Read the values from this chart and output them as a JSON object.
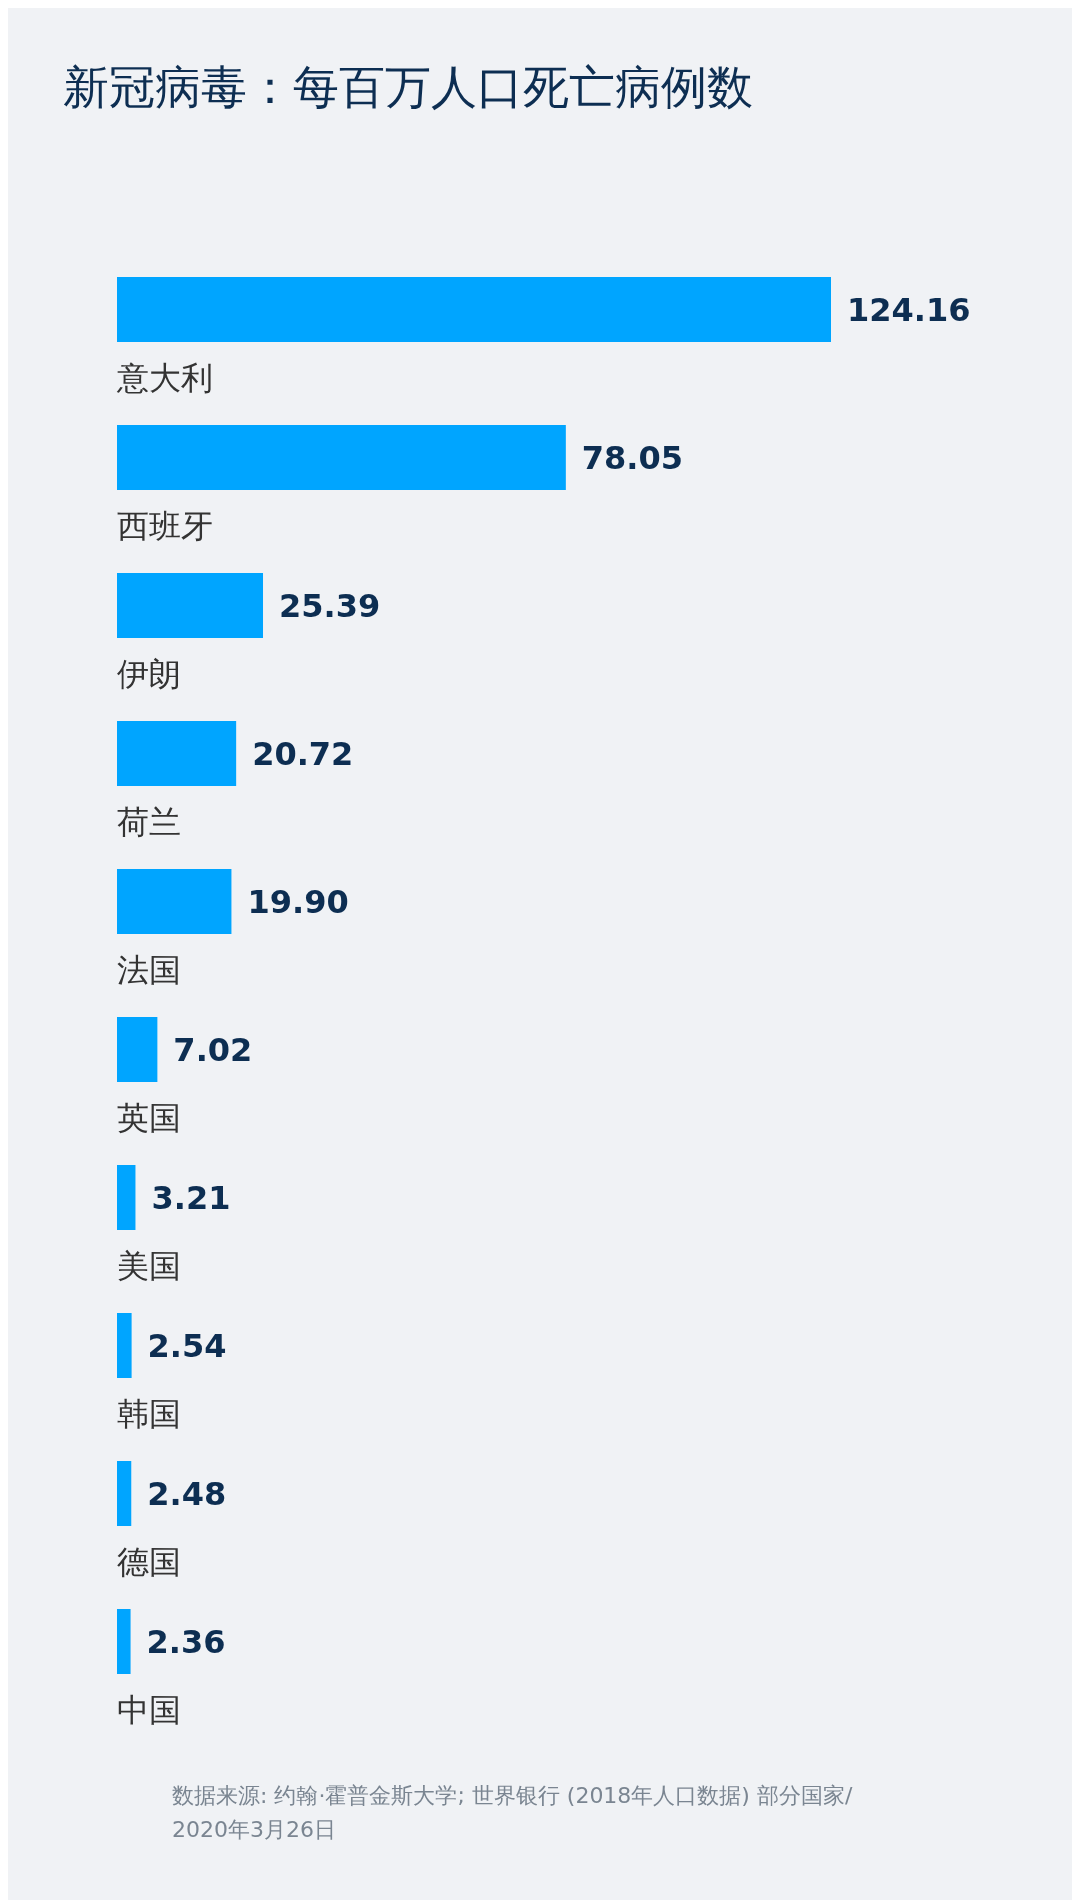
{
  "chart_data": {
    "type": "bar",
    "orientation": "horizontal",
    "title": "新冠病毒：每百万人口死亡病例数",
    "categories": [
      "意大利",
      "西班牙",
      "伊朗",
      "荷兰",
      "法国",
      "英国",
      "美国",
      "韩国",
      "德国",
      "中国"
    ],
    "values": [
      124.16,
      78.05,
      25.39,
      20.72,
      19.9,
      7.02,
      3.21,
      2.54,
      2.48,
      2.36
    ],
    "value_labels": [
      "124.16",
      "78.05",
      "25.39",
      "20.72",
      "19.90",
      "7.02",
      "3.21",
      "2.54",
      "2.48",
      "2.36"
    ],
    "color": "#00a5ff",
    "annotations": [
      "数据来源: 约翰·霍普金斯大学; 世界银行 (2018年人口数据) 部分国家/",
      "2020年3月26日"
    ]
  }
}
